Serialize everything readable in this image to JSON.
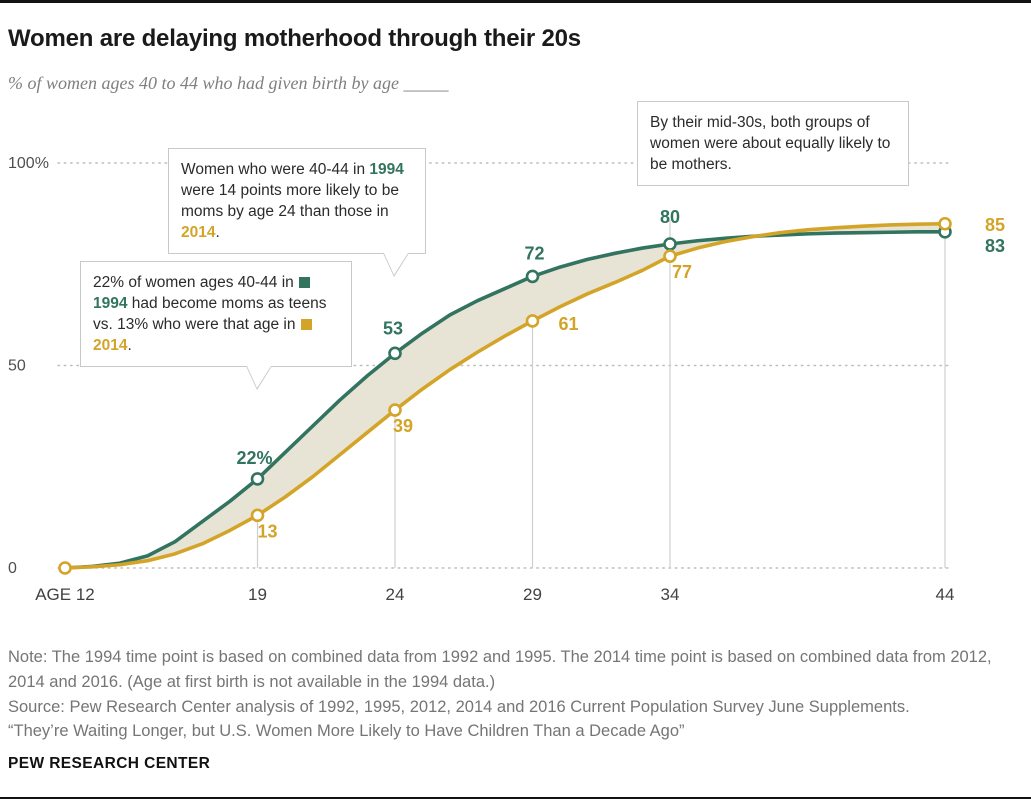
{
  "header": {
    "title": "Women are delaying motherhood through their 20s",
    "subtitle": "% of women ages 40 to 44 who had given birth by age _____"
  },
  "colors": {
    "green_1994": "#327460",
    "gold_2014": "#d3a428",
    "area_between": "#e8e4d5",
    "gridline": "#bdbdbd",
    "reference_line": "#cfcfcf"
  },
  "chart_data": {
    "type": "line",
    "title": "Women are delaying motherhood through their 20s",
    "xlabel": "AGE",
    "ylabel": "% of women ages 40 to 44 who had given birth",
    "xlim": [
      12,
      44
    ],
    "ylim": [
      0,
      100
    ],
    "grid": "dotted-horizontal",
    "x": [
      12,
      13,
      14,
      15,
      16,
      17,
      18,
      19,
      20,
      21,
      22,
      23,
      24,
      25,
      26,
      27,
      28,
      29,
      30,
      31,
      32,
      33,
      34,
      35,
      36,
      37,
      38,
      39,
      40,
      41,
      42,
      43,
      44
    ],
    "series": [
      {
        "name": "1994",
        "color": "#327460",
        "values": [
          0,
          0.4,
          1.2,
          3,
          6.5,
          11.5,
          16.5,
          22,
          28.5,
          35,
          41.5,
          47.5,
          53,
          58,
          62.5,
          66,
          69,
          72,
          74.3,
          76.2,
          77.7,
          79,
          80,
          80.8,
          81.4,
          81.9,
          82.2,
          82.5,
          82.7,
          82.8,
          82.9,
          83,
          83
        ],
        "labeled_points": [
          {
            "age": 19,
            "value": 22,
            "label": "22%"
          },
          {
            "age": 24,
            "value": 53,
            "label": "53"
          },
          {
            "age": 29,
            "value": 72,
            "label": "72"
          },
          {
            "age": 34,
            "value": 80,
            "label": "80"
          },
          {
            "age": 44,
            "value": 83,
            "label": "83"
          }
        ]
      },
      {
        "name": "2014",
        "color": "#d3a428",
        "values": [
          0,
          0.3,
          0.8,
          1.8,
          3.5,
          6,
          9.3,
          13,
          17.5,
          22.5,
          28,
          33.5,
          39,
          44.2,
          49,
          53.3,
          57.3,
          61,
          64.5,
          67.7,
          70.5,
          73.5,
          77,
          79,
          80.6,
          81.8,
          82.8,
          83.5,
          84,
          84.4,
          84.7,
          84.9,
          85
        ],
        "labeled_points": [
          {
            "age": 19,
            "value": 13,
            "label": "13"
          },
          {
            "age": 24,
            "value": 39,
            "label": "39"
          },
          {
            "age": 29,
            "value": 61,
            "label": "61"
          },
          {
            "age": 34,
            "value": 77,
            "label": "77"
          },
          {
            "age": 44,
            "value": 85,
            "label": "85"
          }
        ]
      }
    ],
    "area_between_color": "#e8e4d5",
    "origin_marker": {
      "age": 12,
      "value": 0
    },
    "y_ticks": [
      {
        "v": 0,
        "label": "0"
      },
      {
        "v": 50,
        "label": "50"
      },
      {
        "v": 100,
        "label": "100%"
      }
    ],
    "x_ticks": [
      {
        "v": 12,
        "label": "AGE 12"
      },
      {
        "v": 19,
        "label": "19"
      },
      {
        "v": 24,
        "label": "24"
      },
      {
        "v": 29,
        "label": "29"
      },
      {
        "v": 34,
        "label": "34"
      },
      {
        "v": 44,
        "label": "44"
      }
    ],
    "ref_lines": [
      19,
      24,
      29,
      34,
      44
    ]
  },
  "annotations": {
    "box1": {
      "segments": [
        {
          "t": "Women who were 40-44 in "
        },
        {
          "t": "1994",
          "color": "#327460",
          "bold": true
        },
        {
          "t": " were 14 points more likely to be moms by age 24 than those in "
        },
        {
          "t": "2014",
          "color": "#d3a428",
          "bold": true
        },
        {
          "t": "."
        }
      ]
    },
    "box2": {
      "segments": [
        {
          "t": "22% of women ages 40-44 in "
        },
        {
          "swatch": "#327460"
        },
        {
          "t": "1994",
          "color": "#327460",
          "bold": true
        },
        {
          "t": " had become moms as teens vs. 13% who were that age in "
        },
        {
          "swatch": "#d3a428"
        },
        {
          "t": "2014",
          "color": "#d3a428",
          "bold": true
        },
        {
          "t": "."
        }
      ]
    },
    "box3": {
      "segments": [
        {
          "t": "By their mid-30s, both groups of women were about equally likely to be mothers."
        }
      ]
    }
  },
  "notes": {
    "note": "Note: The 1994 time point is based on combined data from 1992 and 1995. The 2014 time point is based on combined data from 2012, 2014 and 2016. (Age at first birth is not available in the 1994 data.)",
    "source": "Source: Pew Research Center analysis of 1992, 1995, 2012, 2014 and 2016 Current Population Survey June Supplements.",
    "quote": "“They’re Waiting Longer, but U.S. Women More Likely to Have Children Than a Decade Ago”"
  },
  "footer": {
    "brand": "PEW RESEARCH CENTER"
  }
}
